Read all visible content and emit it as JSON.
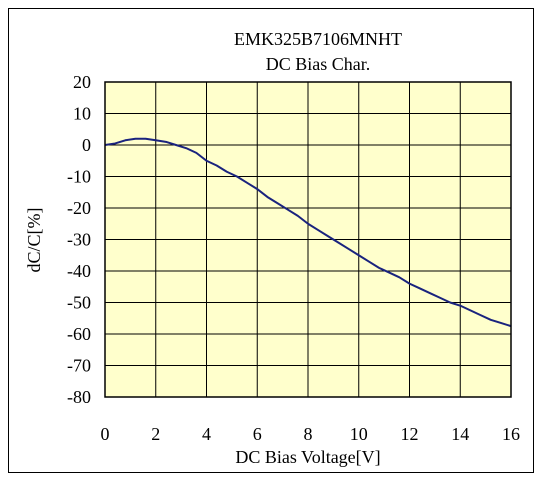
{
  "chart_data": {
    "type": "line",
    "title": "EMK325B7106MNHT",
    "subtitle": "DC Bias Char.",
    "xlabel": "DC Bias Voltage[V]",
    "ylabel": "dC/C[%]",
    "xlim": [
      0,
      16
    ],
    "ylim": [
      -80,
      20
    ],
    "xticks": [
      0,
      2,
      4,
      6,
      8,
      10,
      12,
      14,
      16
    ],
    "yticks": [
      20,
      10,
      0,
      -10,
      -20,
      -30,
      -40,
      -50,
      -60,
      -70,
      -80
    ],
    "xtick_labels": [
      "0",
      "2",
      "4",
      "6",
      "8",
      "10",
      "12",
      "14",
      "16"
    ],
    "ytick_labels": [
      "20",
      "10",
      "0",
      "-10",
      "-20",
      "-30",
      "-40",
      "-50",
      "-60",
      "-70",
      "-80"
    ],
    "grid": true,
    "legend": "none",
    "colors": {
      "plot_background": "#ffffcc",
      "series_line": "#1a237e",
      "grid": "#000000",
      "frame": "#000000"
    },
    "series": [
      {
        "x": [
          0,
          0.4,
          0.8,
          1.2,
          1.6,
          2.0,
          2.4,
          2.8,
          3.2,
          3.6,
          4.0,
          4.4,
          4.8,
          5.2,
          5.6,
          6.0,
          6.4,
          6.8,
          7.2,
          7.6,
          8.0,
          8.4,
          8.8,
          9.2,
          9.6,
          10.0,
          10.4,
          10.8,
          11.2,
          11.6,
          12.0,
          12.4,
          12.8,
          13.2,
          13.6,
          14.0,
          14.4,
          14.8,
          15.2,
          15.6,
          16.0
        ],
        "values": [
          0,
          0.5,
          1.5,
          2.0,
          2.0,
          1.5,
          1.0,
          0,
          -1.0,
          -2.5,
          -5,
          -6.5,
          -8.5,
          -10,
          -12,
          -14,
          -16.5,
          -18.5,
          -20.5,
          -22.5,
          -25,
          -27,
          -29,
          -31,
          -33,
          -35,
          -37,
          -39,
          -40.5,
          -42,
          -44,
          -45.5,
          -47,
          -48.5,
          -50,
          -51,
          -52.5,
          -54,
          -55.5,
          -56.5,
          -57.5
        ]
      }
    ]
  }
}
